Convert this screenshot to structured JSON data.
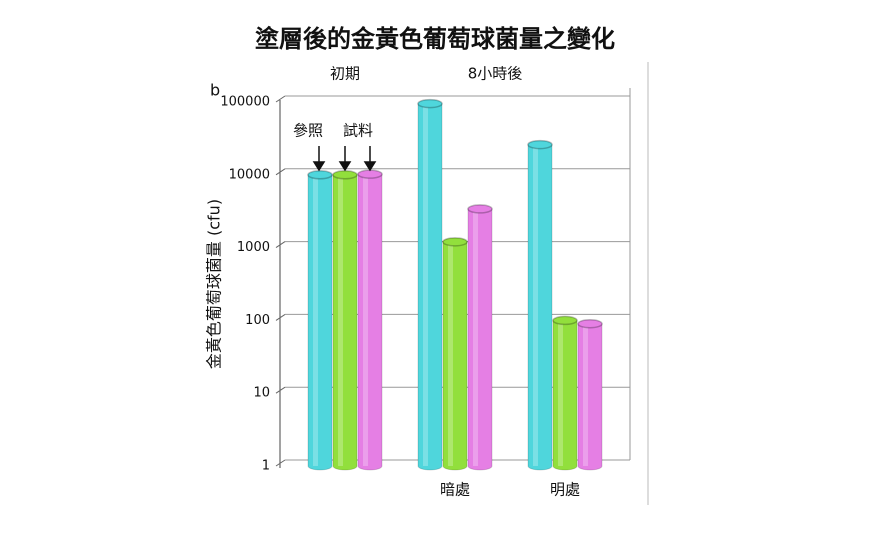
{
  "chart_data": {
    "type": "bar",
    "title": "塗層後的金黃色葡萄球菌量之變化",
    "panel_label": "b",
    "top_labels": [
      "初期",
      "8小時後"
    ],
    "annotations": [
      "參照",
      "試料"
    ],
    "y_label": "金黃色葡萄球菌量 (cfu)",
    "categories": [
      null,
      "暗處",
      "明處"
    ],
    "series": [
      {
        "color": "#4fd6dc",
        "values": [
          10000,
          95000,
          26000
        ]
      },
      {
        "color": "#92df3c",
        "values": [
          10000,
          1200,
          100
        ]
      },
      {
        "color": "#e57fe4",
        "values": [
          10200,
          3400,
          90
        ]
      }
    ],
    "log_scale": true,
    "ylim": [
      1,
      100000
    ],
    "yticks": [
      1,
      10,
      100,
      1000,
      10000,
      100000
    ],
    "grid": true
  }
}
